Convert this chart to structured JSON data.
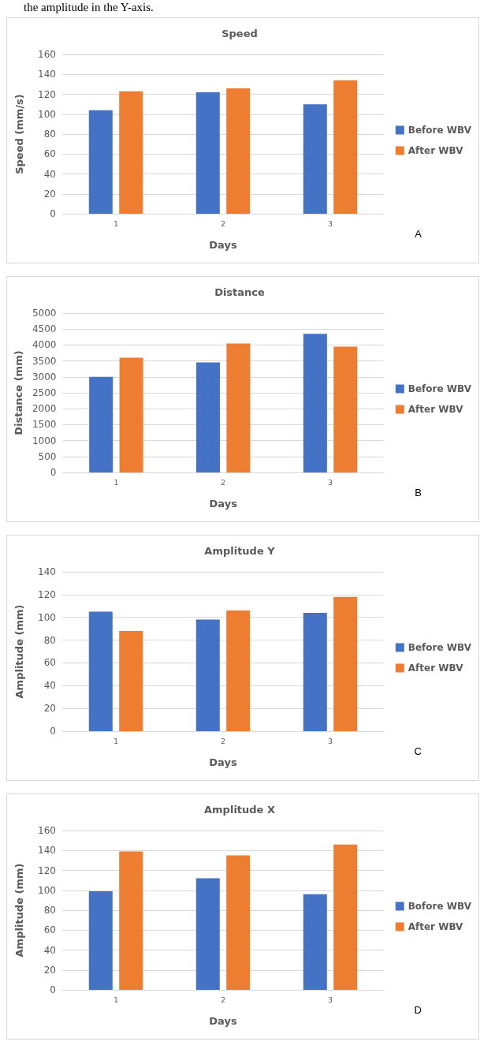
{
  "chart_data": [
    {
      "type": "bar",
      "title": "Speed",
      "xlabel": "Days",
      "ylabel": "Speed (mm/s)",
      "categories": [
        "1",
        "2",
        "3"
      ],
      "series": [
        {
          "name": "Before WBV",
          "color": "#4472c4",
          "values": [
            104,
            122,
            110
          ]
        },
        {
          "name": "After WBV",
          "color": "#ed7d31",
          "values": [
            123,
            126,
            134
          ]
        }
      ],
      "ylim": [
        0,
        160
      ],
      "yticks": [
        0,
        20,
        40,
        60,
        80,
        100,
        120,
        140,
        160
      ],
      "grid": "y",
      "legend": "right",
      "annotations": [
        "the amplitude in the Y-axis.",
        "A"
      ]
    },
    {
      "type": "bar",
      "title": "Distance",
      "xlabel": "Days",
      "ylabel": "Distance (mm)",
      "categories": [
        "1",
        "2",
        "3"
      ],
      "series": [
        {
          "name": "Before WBV",
          "color": "#4472c4",
          "values": [
            3000,
            3450,
            4350
          ]
        },
        {
          "name": "After WBV",
          "color": "#ed7d31",
          "values": [
            3600,
            4050,
            3950
          ]
        }
      ],
      "ylim": [
        0,
        5000
      ],
      "yticks": [
        0,
        500,
        1000,
        1500,
        2000,
        2500,
        3000,
        3500,
        4000,
        4500,
        5000
      ],
      "grid": "y",
      "legend": "right",
      "annotations": [
        "B"
      ]
    },
    {
      "type": "bar",
      "title": "Amplitude Y",
      "xlabel": "Days",
      "ylabel": "Amplitude (mm)",
      "categories": [
        "1",
        "2",
        "3"
      ],
      "series": [
        {
          "name": "Before WBV",
          "color": "#4472c4",
          "values": [
            105,
            98,
            104
          ]
        },
        {
          "name": "After WBV",
          "color": "#ed7d31",
          "values": [
            88,
            106,
            118
          ]
        }
      ],
      "ylim": [
        0,
        140
      ],
      "yticks": [
        0,
        20,
        40,
        60,
        80,
        100,
        120,
        140
      ],
      "grid": "y",
      "legend": "right",
      "annotations": [
        "C"
      ]
    },
    {
      "type": "bar",
      "title": "Amplitude X",
      "xlabel": "Days",
      "ylabel": "Amplitude (mm)",
      "categories": [
        "1",
        "2",
        "3"
      ],
      "series": [
        {
          "name": "Bofore WBV",
          "color": "#4472c4",
          "values": [
            99,
            112,
            96
          ]
        },
        {
          "name": "After WBV",
          "color": "#ed7d31",
          "values": [
            139,
            135,
            146
          ]
        }
      ],
      "ylim": [
        0,
        160
      ],
      "yticks": [
        0,
        20,
        40,
        60,
        80,
        100,
        120,
        140,
        160
      ],
      "grid": "y",
      "legend": "right",
      "annotations": [
        "D"
      ]
    }
  ]
}
